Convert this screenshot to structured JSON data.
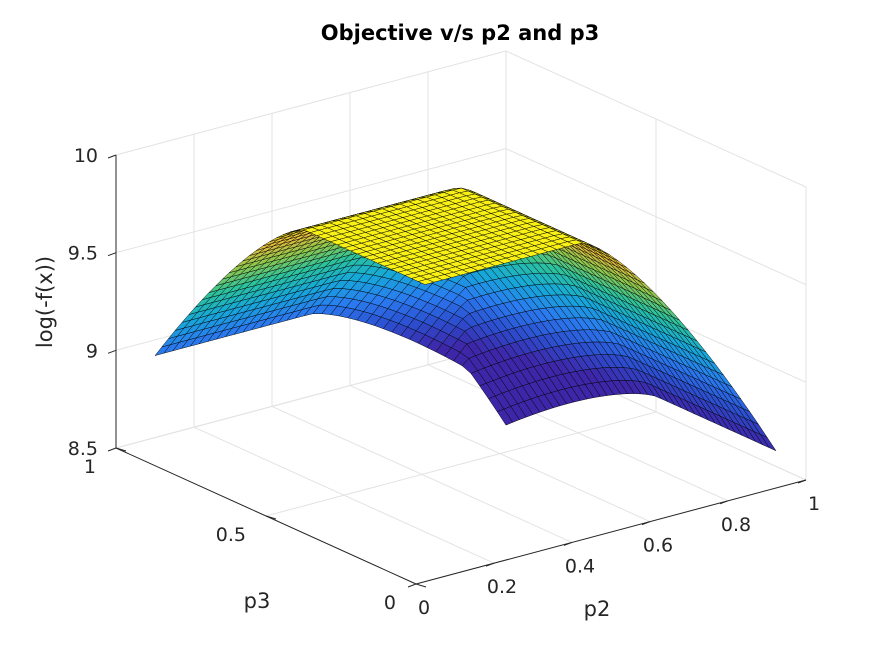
{
  "chart_data": {
    "type": "surface",
    "title": "Objective v/s p2 and p3",
    "xlabel": "p2",
    "ylabel": "p3",
    "zlabel": "log(-f(x))",
    "xlim": [
      0,
      1
    ],
    "ylim": [
      0,
      1
    ],
    "zlim": [
      8.5,
      10
    ],
    "xticks": [
      0,
      0.2,
      0.4,
      0.6,
      0.8,
      1
    ],
    "xtick_labels": [
      "0",
      "0.2",
      "0.4",
      "0.6",
      "0.8",
      "1"
    ],
    "yticks": [
      0,
      0.5,
      1
    ],
    "ytick_labels": [
      "0",
      "0.5",
      "1"
    ],
    "zticks": [
      8.5,
      9,
      9.5,
      10
    ],
    "ztick_labels": [
      "8.5",
      "9",
      "9.5",
      "10"
    ],
    "grid": true,
    "colormap": [
      "#3e26a8",
      "#2c4ecf",
      "#2a7cf0",
      "#16a8d8",
      "#2cc29d",
      "#8ec84e",
      "#e5bb3a",
      "#f9f116"
    ],
    "surface": {
      "description_free": true,
      "x": [
        0.1,
        0.2,
        0.3,
        0.4,
        0.5,
        0.6,
        0.7,
        0.8,
        0.9,
        1.0
      ],
      "y": [
        0.1,
        0.2,
        0.3,
        0.4,
        0.5,
        0.6,
        0.7,
        0.8,
        0.9,
        1.0
      ],
      "plateau_value": 9.91,
      "plateau_x_max": 0.5,
      "plateau_y_max": 0.5,
      "edge_value_x": 8.58,
      "edge_value_y": 8.92
    }
  }
}
